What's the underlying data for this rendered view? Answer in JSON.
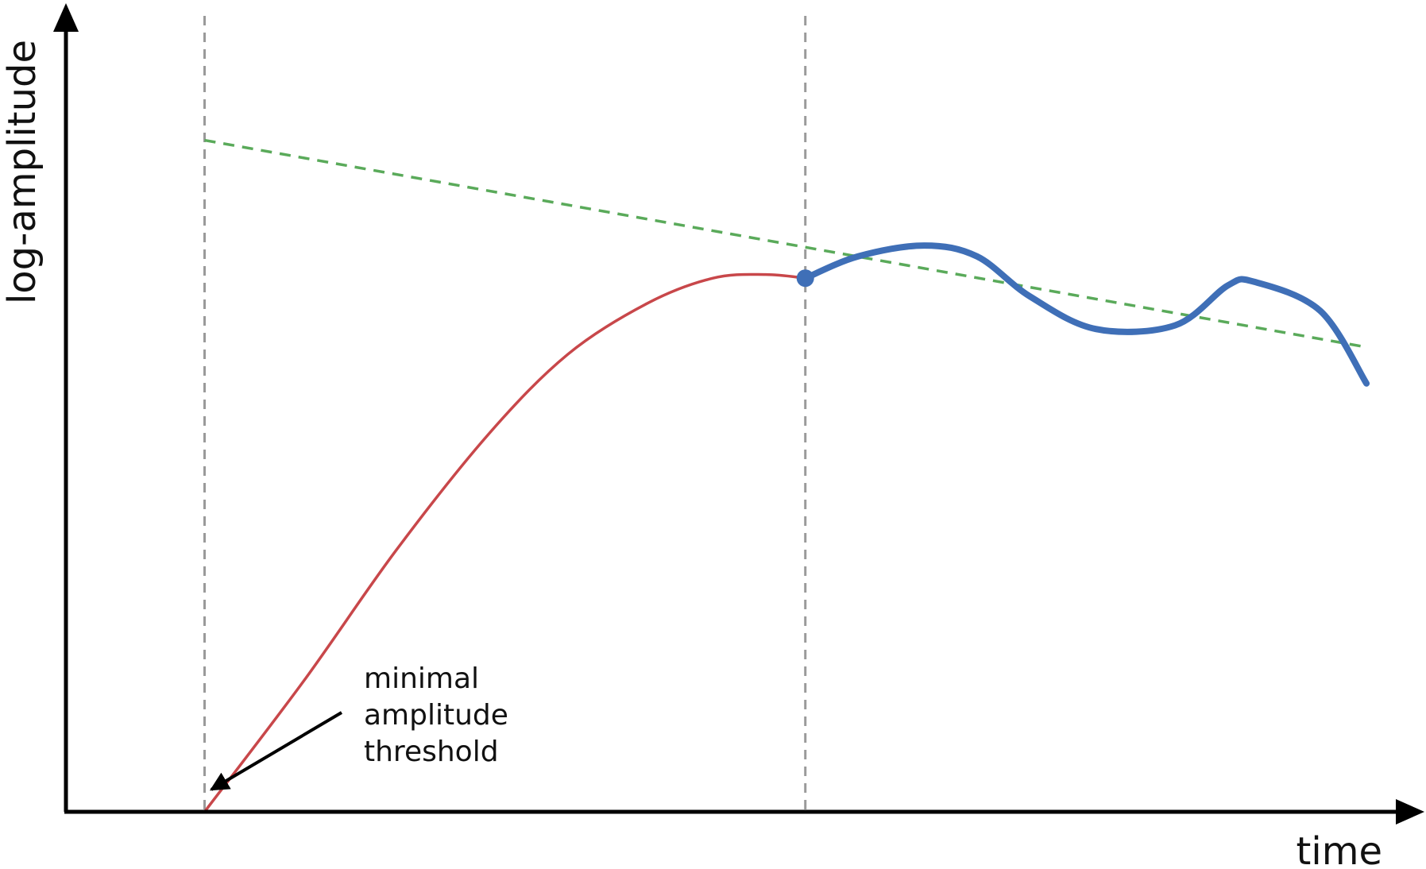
{
  "chart_data": {
    "type": "line",
    "xlabel": "time",
    "ylabel": "log-amplitude",
    "annotation": {
      "lines": [
        "minimal",
        "amplitude",
        "threshold"
      ]
    },
    "colors": {
      "axis": "#000000",
      "growth_curve": "#c8474a",
      "sustained_curve": "#3f6fb7",
      "trend_line": "#5aaa5a",
      "guide_lines": "#9a9a9a",
      "annotation_arrow": "#000000"
    },
    "series": [
      {
        "role": "growth",
        "style": "red-thin",
        "points": [
          [
            0.105,
            0.0
          ],
          [
            0.18,
            0.18
          ],
          [
            0.25,
            0.36
          ],
          [
            0.32,
            0.52
          ],
          [
            0.38,
            0.63
          ],
          [
            0.44,
            0.7
          ],
          [
            0.49,
            0.735
          ],
          [
            0.53,
            0.74
          ],
          [
            0.56,
            0.735
          ]
        ]
      },
      {
        "role": "sustained",
        "style": "blue-thick",
        "points": [
          [
            0.56,
            0.735
          ],
          [
            0.6,
            0.765
          ],
          [
            0.65,
            0.78
          ],
          [
            0.69,
            0.765
          ],
          [
            0.73,
            0.71
          ],
          [
            0.78,
            0.665
          ],
          [
            0.84,
            0.67
          ],
          [
            0.88,
            0.725
          ],
          [
            0.9,
            0.73
          ],
          [
            0.95,
            0.69
          ],
          [
            0.985,
            0.59
          ]
        ]
      },
      {
        "role": "trend",
        "style": "green-dashed",
        "points": [
          [
            0.105,
            0.925
          ],
          [
            0.985,
            0.64
          ]
        ]
      }
    ],
    "markers": [
      {
        "role": "transition-point",
        "x": 0.56,
        "y": 0.735
      }
    ],
    "guide_lines_x": [
      0.105,
      0.56
    ],
    "xlim": [
      0,
      1
    ],
    "ylim": [
      0,
      1
    ],
    "grid": false
  }
}
